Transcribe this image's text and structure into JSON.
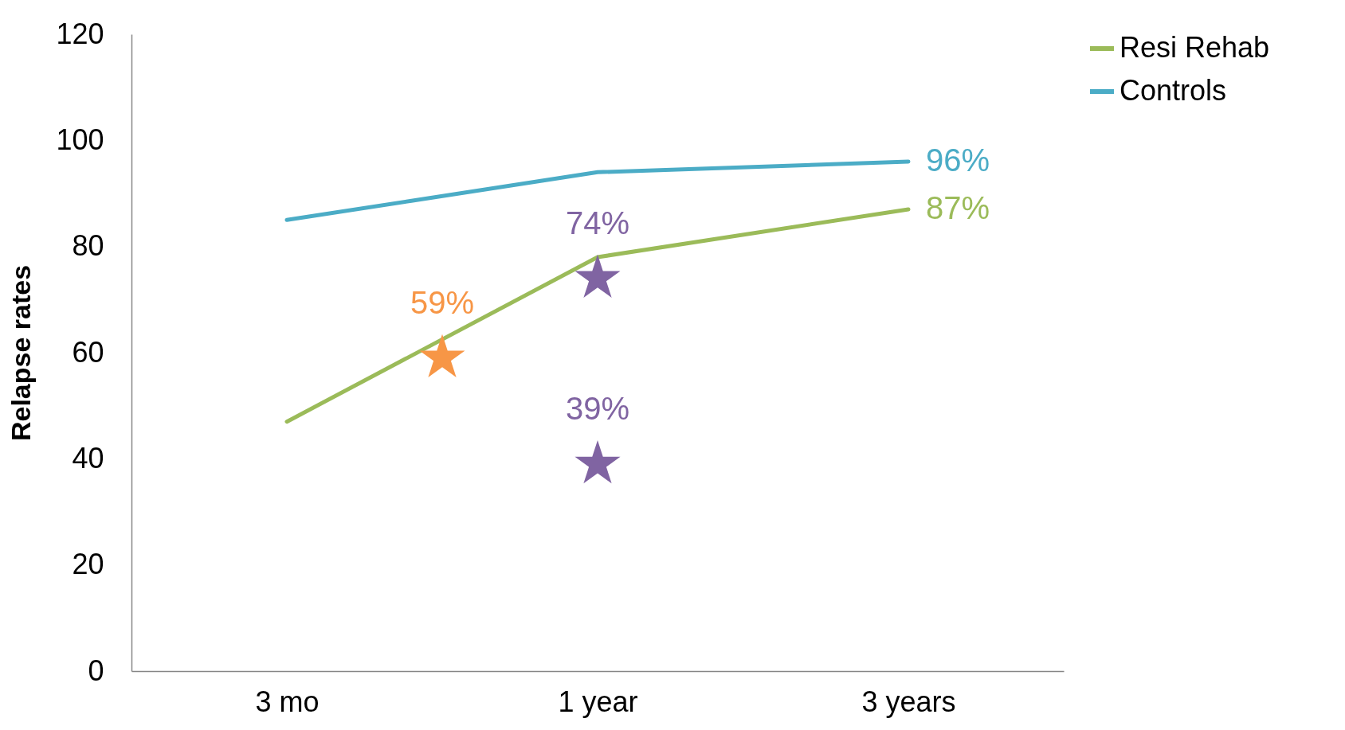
{
  "chart_data": {
    "type": "line",
    "ylabel": "Relapse rates",
    "categories": [
      "3 mo",
      null,
      "1 year",
      null,
      "3 years"
    ],
    "ylim": [
      0,
      120
    ],
    "yticks": [
      0,
      20,
      40,
      60,
      80,
      100,
      120
    ],
    "grid": false,
    "legend": "right",
    "line_style": "solid",
    "series": [
      {
        "name": "Resi Rehab",
        "color": "#9bbb59",
        "x": [
          "3 mo",
          "1 year",
          "3 years"
        ],
        "values": [
          47,
          78,
          87
        ],
        "value_labels": [
          null,
          null,
          "87%"
        ]
      },
      {
        "name": "Controls",
        "color": "#4bacc6",
        "x": [
          "3 mo",
          "1 year",
          "3 years"
        ],
        "values": [
          85,
          94,
          96
        ],
        "value_labels": [
          null,
          null,
          "96%"
        ]
      },
      {
        "type": "scatter",
        "marker": "star",
        "color": "#f79646",
        "values": [
          null,
          59,
          null,
          null,
          null
        ],
        "value_labels": [
          null,
          "59%",
          null,
          null,
          null
        ]
      },
      {
        "type": "scatter",
        "marker": "star",
        "color": "#8064a2",
        "x": [
          "1 year",
          "1 year"
        ],
        "values": [
          74,
          39
        ],
        "value_labels": [
          "74%",
          "39%"
        ]
      }
    ]
  }
}
